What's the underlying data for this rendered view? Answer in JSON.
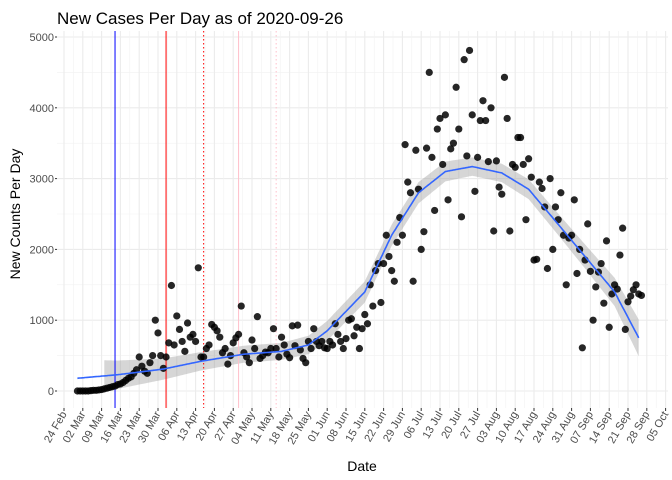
{
  "chart_data": {
    "type": "scatter",
    "title": "New Cases Per Day as of 2020-09-26",
    "xlabel": "Date",
    "ylabel": "New Counts Per Day",
    "ylim": [
      -150,
      5100
    ],
    "yticks": [
      0,
      1000,
      2000,
      3000,
      4000,
      5000
    ],
    "x_start": "2020-02-24",
    "xlim_days": [
      -3,
      227
    ],
    "xtick_labels": [
      "24 Feb",
      "02 Mar",
      "09 Mar",
      "16 Mar",
      "23 Mar",
      "30 Mar",
      "06 Apr",
      "13 Apr",
      "20 Apr",
      "27 Apr",
      "04 May",
      "11 May",
      "18 May",
      "25 May",
      "01 Jun",
      "08 Jun",
      "15 Jun",
      "22 Jun",
      "29 Jun",
      "06 Jul",
      "13 Jul",
      "20 Jul",
      "27 Jul",
      "03 Aug",
      "10 Aug",
      "17 Aug",
      "24 Aug",
      "31 Aug",
      "07 Sep",
      "14 Sep",
      "21 Sep",
      "28 Sep",
      "05 Oct"
    ],
    "grid": true,
    "points_start": "2020-02-29",
    "values": [
      0,
      0,
      0,
      0,
      0,
      5,
      10,
      10,
      15,
      20,
      30,
      40,
      50,
      60,
      70,
      90,
      100,
      120,
      150,
      180,
      200,
      250,
      300,
      480,
      350,
      280,
      250,
      400,
      500,
      1000,
      820,
      500,
      320,
      480,
      680,
      1490,
      650,
      1060,
      870,
      700,
      560,
      960,
      760,
      800,
      700,
      1740,
      480,
      480,
      600,
      650,
      940,
      900,
      850,
      760,
      540,
      600,
      380,
      500,
      680,
      750,
      800,
      1200,
      540,
      480,
      400,
      720,
      600,
      1050,
      460,
      500,
      550,
      540,
      600,
      880,
      600,
      480,
      760,
      650,
      520,
      470,
      920,
      640,
      930,
      580,
      460,
      400,
      700,
      600,
      880,
      700,
      640,
      700,
      610,
      600,
      700,
      650,
      950,
      800,
      700,
      600,
      740,
      1000,
      1020,
      780,
      900,
      600,
      880,
      1080,
      950,
      1500,
      1200,
      1700,
      1800,
      1250,
      1800,
      2200,
      1900,
      1700,
      1550,
      2100,
      2450,
      2200,
      3480,
      2950,
      2800,
      1550,
      3400,
      2850,
      2000,
      2250,
      3430,
      4500,
      3300,
      2550,
      3700,
      3850,
      3200,
      3900,
      2700,
      3420,
      3500,
      4290,
      3700,
      2460,
      4680,
      3320,
      4810,
      3900,
      2820,
      3300,
      3820,
      4100,
      3820,
      3240,
      4000,
      2260,
      3250,
      2880,
      2780,
      4430,
      3850,
      2260,
      3200,
      3160,
      3580,
      3580,
      3200,
      2420,
      3280,
      3020,
      1850,
      1860,
      2950,
      2860,
      2600,
      1730,
      3000,
      2000,
      2600,
      2420,
      2800,
      2200,
      1500,
      2160,
      2200,
      2700,
      1660,
      2000,
      610,
      1850,
      2360,
      1690,
      1000,
      1470,
      1680,
      1800,
      1240,
      2120,
      900,
      1370,
      1500,
      1440,
      1920,
      2300,
      870,
      1260,
      1340,
      1430,
      1500,
      1370,
      1350
    ],
    "smooth": {
      "days": [
        5,
        20,
        37,
        51,
        67,
        81,
        91,
        98,
        112,
        122,
        132,
        142,
        152,
        163,
        173,
        183,
        194,
        205,
        214
      ],
      "values": [
        180,
        230,
        310,
        420,
        520,
        560,
        650,
        850,
        1400,
        2200,
        2800,
        3100,
        3170,
        3080,
        2850,
        2400,
        1900,
        1400,
        750
      ],
      "se_band": [
        260,
        200,
        150,
        130,
        120,
        120,
        130,
        140,
        150,
        150,
        150,
        140,
        130,
        130,
        140,
        150,
        170,
        200,
        260
      ],
      "band_start_day": 15,
      "color": "#3366FF"
    },
    "vlines": [
      {
        "date": "2020-03-14",
        "day": 19,
        "color": "#0000FF",
        "style": "solid"
      },
      {
        "date": "2020-04-02",
        "day": 38,
        "color": "#FF0000",
        "style": "solid"
      },
      {
        "date": "2020-04-16",
        "day": 52,
        "color": "#FF0000",
        "style": "dotted"
      },
      {
        "date": "2020-04-29",
        "day": 65,
        "color": "#FFC0CB",
        "style": "solid"
      },
      {
        "date": "2020-05-13",
        "day": 79,
        "color": "#FFC0CB",
        "style": "dotted"
      }
    ]
  }
}
